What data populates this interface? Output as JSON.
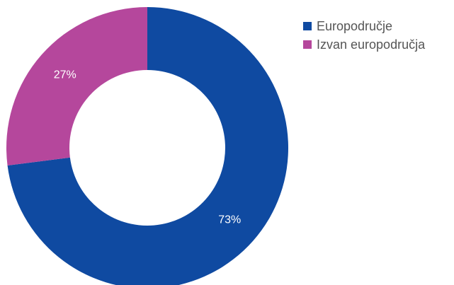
{
  "chart_data": {
    "type": "pie",
    "categories": [
      "Europodručje",
      "Izvan europodručja"
    ],
    "values": [
      73,
      27
    ],
    "value_labels": [
      "73%",
      "27%"
    ],
    "colors": [
      "#0f4aa1",
      "#b5479c"
    ],
    "legend": "top-right"
  }
}
